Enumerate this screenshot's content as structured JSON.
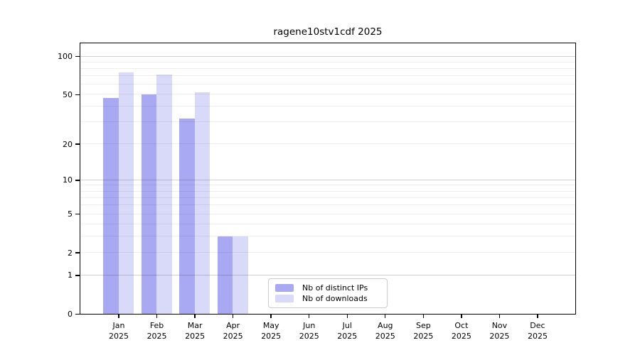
{
  "title": "ragene10stv1cdf 2025",
  "chart_data": {
    "type": "bar",
    "title": "ragene10stv1cdf 2025",
    "categories": [
      "Jan 2025",
      "Feb 2025",
      "Mar 2025",
      "Apr 2025",
      "May 2025",
      "Jun 2025",
      "Jul 2025",
      "Aug 2025",
      "Sep 2025",
      "Oct 2025",
      "Nov 2025",
      "Dec 2025"
    ],
    "series": [
      {
        "name": "Nb of distinct IPs",
        "color": "#a8a8f3",
        "values": [
          47,
          50,
          32,
          3,
          0,
          0,
          0,
          0,
          0,
          0,
          0,
          0
        ]
      },
      {
        "name": "Nb of downloads",
        "color": "#d9d9f9",
        "values": [
          74,
          72,
          52,
          3,
          0,
          0,
          0,
          0,
          0,
          0,
          0,
          0
        ]
      }
    ],
    "yscale": "log10(1+y)",
    "yticks": [
      100,
      50,
      20,
      10,
      5,
      2,
      1,
      0
    ],
    "ytick_labels": [
      "100",
      "50",
      "20",
      "10",
      "5",
      "2",
      "1",
      "0"
    ],
    "ylim": [
      0,
      126
    ],
    "xlabel": "",
    "ylabel": "",
    "grid": "horizontal log major+minor, on",
    "legend_position": "inside lower center",
    "frame_color": "#000000",
    "major_grid_color": "#d2d2d2",
    "minor_grid_color": "#efefef"
  }
}
